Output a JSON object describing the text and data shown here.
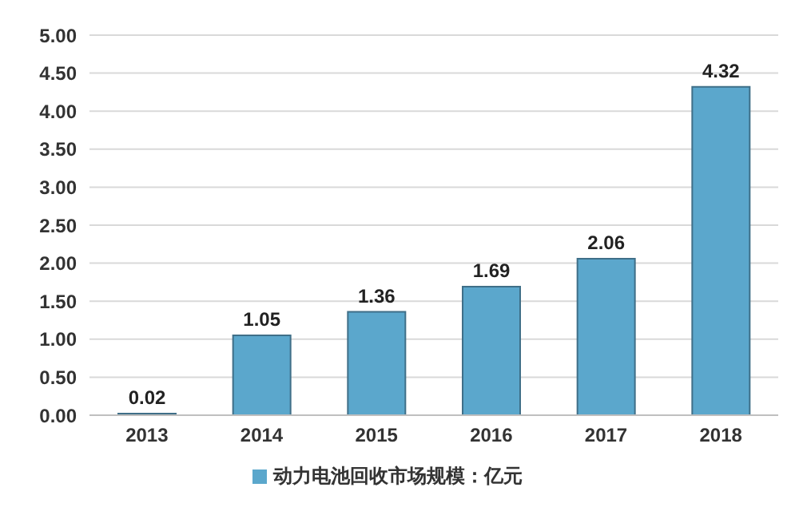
{
  "chart_data": {
    "type": "bar",
    "categories": [
      "2013",
      "2014",
      "2015",
      "2016",
      "2017",
      "2018"
    ],
    "series": [
      {
        "name": "动力电池回收市场规模：亿元",
        "color": "#5ba7cc",
        "values": [
          0.02,
          1.05,
          1.36,
          1.69,
          2.06,
          4.32
        ]
      }
    ],
    "ylim": [
      0,
      5
    ],
    "yticks": [
      {
        "value": 0,
        "label": "0.00"
      },
      {
        "value": 0.5,
        "label": "0.50"
      },
      {
        "value": 1,
        "label": "1.00"
      },
      {
        "value": 1.5,
        "label": "1.50"
      },
      {
        "value": 2,
        "label": "2.00"
      },
      {
        "value": 2.5,
        "label": "2.50"
      },
      {
        "value": 3,
        "label": "3.00"
      },
      {
        "value": 3.5,
        "label": "3.50"
      },
      {
        "value": 4,
        "label": "4.00"
      },
      {
        "value": 4.5,
        "label": "4.50"
      },
      {
        "value": 5,
        "label": "5.00"
      }
    ],
    "grid": "y",
    "legend": "bottom",
    "data_labels": true
  }
}
